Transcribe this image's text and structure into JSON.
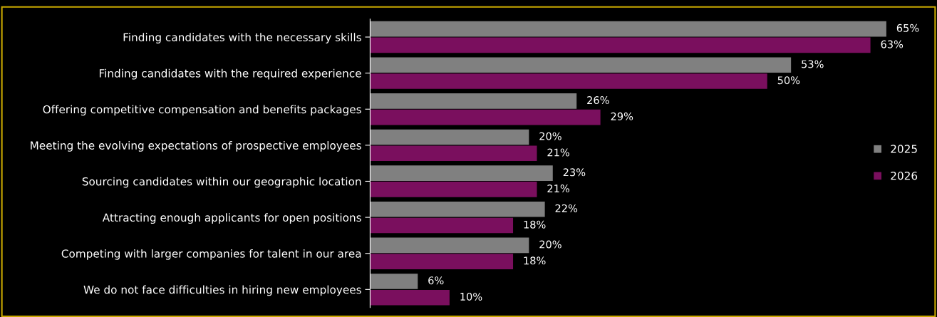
{
  "chart_data": {
    "type": "bar",
    "orientation": "horizontal",
    "categories": [
      "Finding candidates with the necessary skills",
      "Finding candidates with the required experience",
      "Offering competitive compensation and benefits packages",
      "Meeting the evolving expectations of prospective employees",
      "Sourcing candidates within our geographic location",
      "Attracting enough applicants for open positions",
      "Competing with larger companies for talent in our area",
      "We do not face difficulties in hiring new employees"
    ],
    "series": [
      {
        "name": "2025",
        "color": "#808080",
        "values": [
          65,
          53,
          26,
          20,
          23,
          22,
          20,
          6
        ],
        "value_labels": [
          "65%",
          "53%",
          "26%",
          "20%",
          "23%",
          "22%",
          "20%",
          "6%"
        ]
      },
      {
        "name": "2026",
        "color": "#7a0f5e",
        "values": [
          63,
          50,
          29,
          21,
          21,
          18,
          18,
          10
        ],
        "value_labels": [
          "63%",
          "50%",
          "29%",
          "21%",
          "21%",
          "18%",
          "18%",
          "10%"
        ]
      }
    ],
    "legend": "right",
    "grid": false,
    "tick_labels": "y"
  }
}
